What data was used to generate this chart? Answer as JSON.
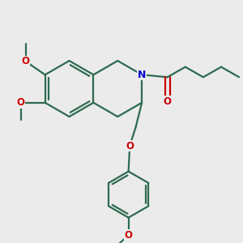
{
  "bg_color": "#ebebeb",
  "bond_color": "#2d6b50",
  "n_color": "#0000cc",
  "o_color": "#cc0000",
  "line_width": 1.6,
  "font_size": 8.5,
  "figsize": [
    3.0,
    3.0
  ],
  "dpi": 100,
  "xlim": [
    0,
    10
  ],
  "ylim": [
    0,
    10
  ]
}
